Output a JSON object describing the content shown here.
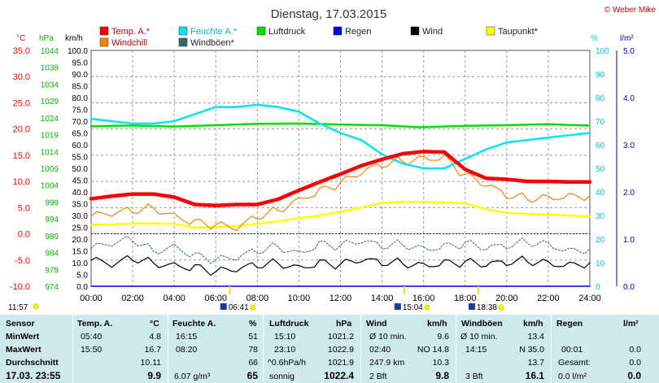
{
  "header": {
    "title": "Dienstag, 17.03.2015",
    "copyright": "© Weber Mike"
  },
  "chart_data": {
    "type": "line",
    "title": "Dienstag, 17.03.2015",
    "x_ticks": [
      "00:00",
      "02:00",
      "04:00",
      "06:00",
      "08:00",
      "10:00",
      "12:00",
      "14:00",
      "16:00",
      "18:00",
      "20:00",
      "22:00",
      "24:00"
    ],
    "axes": {
      "temp_c": {
        "label": "°C",
        "min": -10,
        "max": 35,
        "ticks": [
          "35.0",
          "30.0",
          "25.0",
          "20.0",
          "15.0",
          "10.0",
          "5.0",
          "0.0",
          "-5.0",
          "-10.0"
        ],
        "color": "#ff0000"
      },
      "pressure_hpa": {
        "label": "hPa",
        "min": 974,
        "max": 1044,
        "ticks": [
          "1044",
          "1039",
          "1034",
          "1029",
          "1024",
          "1019",
          "1014",
          "1009",
          "1004",
          "999",
          "994",
          "989",
          "984",
          "979",
          "974"
        ],
        "color": "#00cc00"
      },
      "wind_kmh": {
        "label": "km/h",
        "min": 0,
        "max": 100,
        "ticks": [
          "100.0",
          "95.0",
          "90.0",
          "85.0",
          "80.0",
          "75.0",
          "70.0",
          "65.0",
          "60.0",
          "55.0",
          "50.0",
          "45.0",
          "40.0",
          "35.0",
          "30.0",
          "25.0",
          "20.0",
          "15.0",
          "10.0",
          "5.0",
          "0.0"
        ],
        "color": "#000000"
      },
      "humidity_pct": {
        "label": "%",
        "min": 0,
        "max": 100,
        "ticks": [
          "100",
          "90",
          "80",
          "70",
          "60",
          "50",
          "40",
          "30",
          "20",
          "10",
          "0"
        ],
        "color": "#00d8e8"
      },
      "rain_lm2": {
        "label": "l/m²",
        "min": 0,
        "max": 5,
        "ticks": [
          "5.0",
          "4.0",
          "3.0",
          "2.0",
          "1.0",
          "0.0"
        ],
        "color": "#0000cc"
      }
    },
    "legend": [
      {
        "name": "Temp. A.*",
        "color": "#ff0000"
      },
      {
        "name": "Feuchte A.*",
        "color": "#00e5f0"
      },
      {
        "name": "Luftdruck",
        "color": "#00dd00"
      },
      {
        "name": "Regen",
        "color": "#0000ff"
      },
      {
        "name": "Wind",
        "color": "#000000"
      },
      {
        "name": "Taupunkt*",
        "color": "#ffff00"
      },
      {
        "name": "Windchill",
        "color": "#ff8000"
      },
      {
        "name": "Windböen*",
        "color": "#336666"
      }
    ],
    "series": [
      {
        "name": "Temp. A.*",
        "axis": "temp_c",
        "color": "#ff0000",
        "x": [
          0,
          1,
          2,
          3,
          4,
          5,
          6,
          7,
          8,
          9,
          10,
          11,
          12,
          13,
          14,
          15,
          16,
          17,
          18,
          19,
          20,
          21,
          22,
          23,
          24
        ],
        "values": [
          6.7,
          7.2,
          7.6,
          7.6,
          7.0,
          5.6,
          5.4,
          5.6,
          5.6,
          6.6,
          8.3,
          9.9,
          11.4,
          13.0,
          14.2,
          15.3,
          15.7,
          15.6,
          12.3,
          10.6,
          10.4,
          10.0,
          10.0,
          9.9,
          9.9
        ]
      },
      {
        "name": "Feuchte A.*",
        "axis": "humidity_pct",
        "color": "#00e5f0",
        "x": [
          0,
          1,
          2,
          3,
          4,
          5,
          6,
          7,
          8,
          9,
          10,
          11,
          12,
          13,
          14,
          15,
          16,
          17,
          18,
          19,
          20,
          21,
          22,
          23,
          24
        ],
        "values": [
          71,
          70,
          69,
          69,
          70,
          73,
          76,
          76,
          77,
          76,
          74,
          69,
          65,
          62,
          56,
          52,
          50,
          50,
          54,
          58,
          61,
          62,
          63,
          64,
          65
        ]
      },
      {
        "name": "Luftdruck",
        "axis": "pressure_hpa",
        "color": "#00dd00",
        "x": [
          0,
          2,
          4,
          6,
          8,
          10,
          12,
          14,
          15.83,
          18,
          20,
          22,
          23.92
        ],
        "values": [
          1021.5,
          1021.7,
          1021.4,
          1021.8,
          1022.2,
          1022.3,
          1022.0,
          1021.8,
          1021.2,
          1021.6,
          1021.8,
          1022.1,
          1021.7
        ]
      },
      {
        "name": "Taupunkt*",
        "axis": "temp_c",
        "color": "#ffff00",
        "x": [
          0,
          1,
          2,
          3,
          4,
          5,
          6,
          7,
          8,
          9,
          10,
          11,
          12,
          13,
          14,
          15,
          16,
          17,
          18,
          19,
          20,
          21,
          22,
          23,
          24
        ],
        "values": [
          1.7,
          1.8,
          2.0,
          2.0,
          1.9,
          1.2,
          1.3,
          1.5,
          1.9,
          2.4,
          3.0,
          3.5,
          4.2,
          5.0,
          5.9,
          6.1,
          6.1,
          6.0,
          5.8,
          4.7,
          4.0,
          3.8,
          3.7,
          3.5,
          3.3
        ]
      },
      {
        "name": "Windchill",
        "axis": "temp_c",
        "color": "#ff8000",
        "x": [
          0,
          1,
          2,
          3,
          4,
          5,
          6,
          7,
          8,
          9,
          10,
          11,
          12,
          13,
          14,
          15,
          16,
          17,
          18,
          19,
          20,
          21,
          22,
          23,
          24
        ],
        "values": [
          3.3,
          3.8,
          4.5,
          5.0,
          3.5,
          2.2,
          1.6,
          1.0,
          3.3,
          4.6,
          6.6,
          8.2,
          9.6,
          11.6,
          13.2,
          14.0,
          14.5,
          14.6,
          11.1,
          9.3,
          7.3,
          6.8,
          7.0,
          7.2,
          7.3
        ]
      },
      {
        "name": "Wind",
        "axis": "wind_kmh",
        "color": "#000000",
        "x": [
          0,
          1,
          2,
          3,
          4,
          5,
          6,
          7,
          8,
          9,
          10,
          11,
          12,
          13,
          14,
          15,
          16,
          17,
          18,
          19,
          20,
          21,
          22,
          23,
          24
        ],
        "values": [
          11,
          9,
          12,
          10,
          9,
          8,
          6,
          7,
          9,
          10,
          8,
          10,
          9,
          11,
          10,
          10,
          9,
          10,
          10,
          9,
          10,
          11,
          10,
          9,
          10
        ]
      },
      {
        "name": "Windböen*",
        "axis": "wind_kmh",
        "color": "#336666",
        "x": [
          0,
          1,
          2,
          3,
          4,
          5,
          6,
          7,
          8,
          9,
          10,
          11,
          12,
          13,
          14,
          15,
          16,
          17,
          18,
          19,
          20,
          21,
          22,
          23,
          24
        ],
        "values": [
          16,
          18,
          20,
          15,
          17,
          13,
          11,
          12,
          15,
          17,
          14,
          18,
          17,
          19,
          17,
          18,
          16,
          17,
          18,
          16,
          17,
          19,
          18,
          15,
          16
        ]
      },
      {
        "name": "Regen",
        "axis": "rain_lm2",
        "color": "#0000ff",
        "x": [
          0,
          24
        ],
        "values": [
          0.0,
          0.0
        ]
      }
    ],
    "markers": {
      "bottom_left": "11:57",
      "sunrise": "06:41",
      "sunset": "18:38",
      "moon": "15:04"
    },
    "grid": true
  },
  "table": {
    "headers": [
      "Sensor",
      "Temp. A.",
      "°C",
      "Feuchte A.",
      "%",
      "Luftdruck",
      "hPa",
      "Wind",
      "km/h",
      "Windböen",
      "km/h",
      "Regen",
      "l/m²"
    ],
    "rows": [
      {
        "label": "MinWert",
        "temp_t": "05:40",
        "temp_v": "4.8",
        "hum_t": "16:15",
        "hum_v": "51",
        "pres_t": "15:10",
        "pres_v": "1021.2",
        "wind_t": "Ø 10 min.",
        "wind_v": "9.6",
        "gust_t": "Ø 10 min.",
        "gust_v": "13.4",
        "rain_t": "",
        "rain_v": ""
      },
      {
        "label": "MaxWert",
        "temp_t": "15:50",
        "temp_v": "16.7",
        "hum_t": "08:20",
        "hum_v": "78",
        "pres_t": "23:10",
        "pres_v": "1022.9",
        "wind_t": "02:40",
        "wind_dir": "NO 14.8",
        "wind_v": "",
        "gust_t": "14:15",
        "gust_dir": "N 35.0",
        "gust_v": "",
        "rain_t": "00:01",
        "rain_v": "0.0"
      },
      {
        "label": "Durchschnitt",
        "temp_t": "",
        "temp_v": "10.11",
        "hum_t": "",
        "hum_v": "66",
        "pres_t": "^0.6hPa/h",
        "pres_v": "1021.9",
        "wind_t": "247.9 km",
        "wind_v": "10.3",
        "gust_t": "",
        "gust_v": "13.7",
        "rain_t": "Gesamt:",
        "rain_v": "0.0"
      },
      {
        "label": "17.03. 23:55",
        "temp_t": "",
        "temp_v": "9.9",
        "hum_t": "6.07 g/m³",
        "hum_v": "65",
        "pres_t": "sonnig",
        "pres_v": "1022.4",
        "wind_t": "2 Bft",
        "wind_v": "9.8",
        "gust_t": "3 Bft",
        "gust_v": "16.1",
        "rain_t": "0.0 l/m²",
        "rain_v": "0.0"
      }
    ]
  }
}
